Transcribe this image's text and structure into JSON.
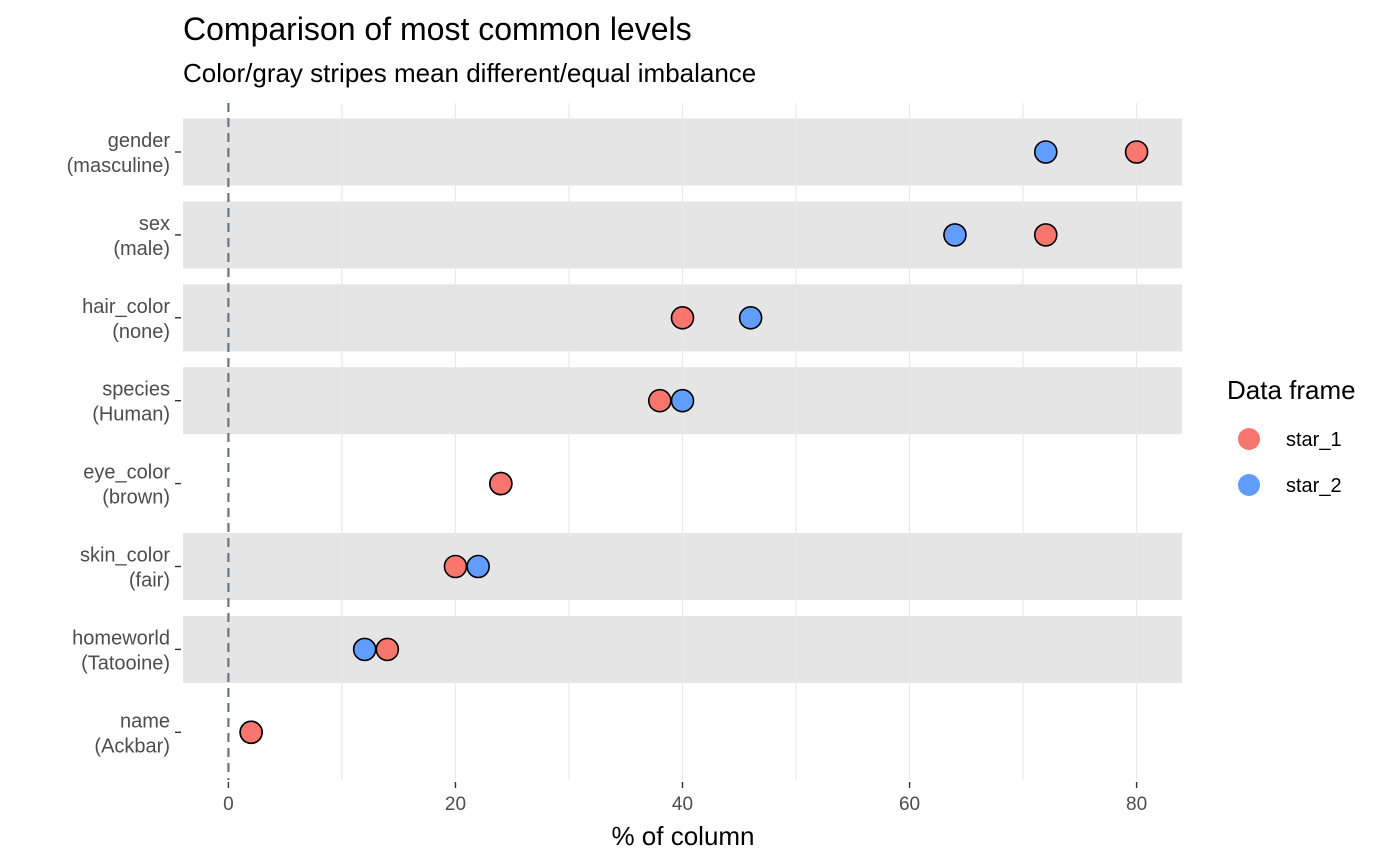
{
  "chart_data": {
    "type": "scatter",
    "title": "Comparison of most common levels",
    "subtitle": "Color/gray stripes mean different/equal imbalance",
    "xlabel": "% of column",
    "xlim": [
      -4,
      84
    ],
    "x_ticks": [
      0,
      20,
      40,
      60,
      80
    ],
    "reference_line_x": 0,
    "legend": {
      "title": "Data frame",
      "placement": "right",
      "entries": [
        {
          "name": "star_1",
          "color": "#F8766D"
        },
        {
          "name": "star_2",
          "color": "#619CFF"
        }
      ]
    },
    "rows": [
      {
        "variable": "gender",
        "level": "(masculine)",
        "stripe": true,
        "star_1": 80,
        "star_2": 72
      },
      {
        "variable": "sex",
        "level": "(male)",
        "stripe": true,
        "star_1": 72,
        "star_2": 64
      },
      {
        "variable": "hair_color",
        "level": "(none)",
        "stripe": true,
        "star_1": 40,
        "star_2": 46
      },
      {
        "variable": "species",
        "level": "(Human)",
        "stripe": true,
        "star_1": 38,
        "star_2": 40
      },
      {
        "variable": "eye_color",
        "level": "(brown)",
        "stripe": false,
        "star_1": 24,
        "star_2": 24
      },
      {
        "variable": "skin_color",
        "level": "(fair)",
        "stripe": true,
        "star_1": 20,
        "star_2": 22
      },
      {
        "variable": "homeworld",
        "level": "(Tatooine)",
        "stripe": true,
        "star_1": 14,
        "star_2": 12
      },
      {
        "variable": "name",
        "level": "(Ackbar)",
        "stripe": false,
        "star_1": 2,
        "star_2": 2
      }
    ],
    "colors": {
      "stripe": "#E5E5E5",
      "gridline": "#E8E8E8",
      "reference_line": "#6B7580",
      "point_outline": "#000000"
    }
  }
}
